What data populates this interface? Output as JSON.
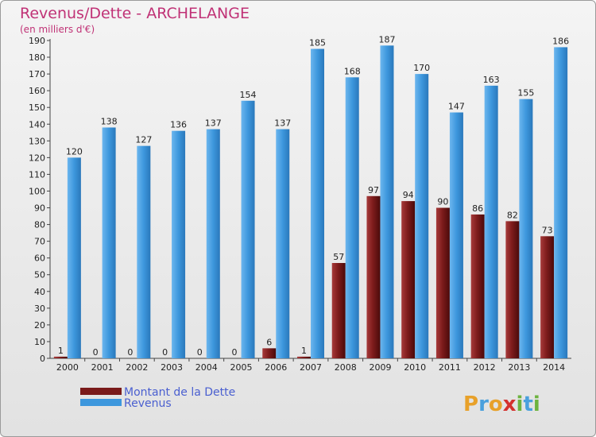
{
  "chart_data": {
    "type": "bar",
    "title": "Revenus/Dette - ARCHELANGE",
    "subtitle": "(en milliers d'€)",
    "categories": [
      "2000",
      "2001",
      "2002",
      "2003",
      "2004",
      "2005",
      "2006",
      "2007",
      "2008",
      "2009",
      "2010",
      "2011",
      "2012",
      "2013",
      "2014"
    ],
    "series": [
      {
        "name": "Montant de la Dette",
        "color": "#7a1a1a",
        "values": [
          1,
          0,
          0,
          0,
          0,
          0,
          6,
          1,
          57,
          97,
          94,
          90,
          86,
          82,
          73
        ]
      },
      {
        "name": "Revenus",
        "color": "#3d97dd",
        "values": [
          120,
          138,
          127,
          136,
          137,
          154,
          137,
          185,
          168,
          187,
          170,
          147,
          163,
          155,
          186
        ]
      }
    ],
    "ylim": [
      0,
      190
    ],
    "ytick_step": 10,
    "grid": false,
    "legend_position": "bottom-left"
  },
  "logo": {
    "letters": [
      "P",
      "r",
      "o",
      "x",
      "i",
      "t",
      "i"
    ],
    "colors": [
      "#e8a12a",
      "#4aa0dd",
      "#e8a12a",
      "#d4312e",
      "#6db33f",
      "#4aa0dd",
      "#6db33f"
    ]
  }
}
